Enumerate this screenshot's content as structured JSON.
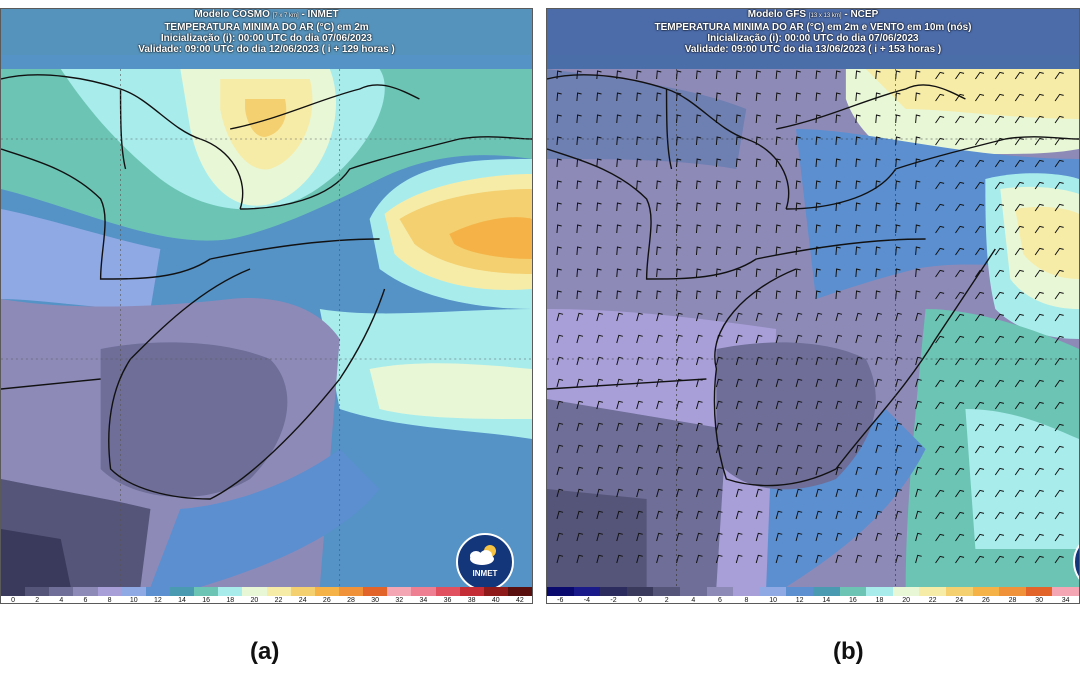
{
  "panels": [
    {
      "id": "a",
      "header": {
        "line1_prefix": "Modelo COSMO",
        "line1_res": "[7 x 7 km]",
        "line1_suffix": "- INMET",
        "line2": "TEMPERATURA MINIMA DO AR (°C) em 2m",
        "line3": "Inicialização (i): 00:00 UTC do dia 07/06/2023",
        "line4": "Validade: 09:00 UTC do dia 12/06/2023 ( i + 129 horas )"
      },
      "colorbar_ticks": [
        "0",
        "2",
        "4",
        "6",
        "8",
        "10",
        "12",
        "14",
        "16",
        "18",
        "20",
        "22",
        "24",
        "26",
        "28",
        "30",
        "32",
        "34",
        "36",
        "38",
        "40",
        "42"
      ],
      "colorbar_colors": [
        "#3a3a5c",
        "#55557a",
        "#6e6e98",
        "#8d8ab8",
        "#a99fd8",
        "#8ea9e4",
        "#5b8fd0",
        "#4a9bb2",
        "#6cc4b4",
        "#a8ecec",
        "#e8f7d6",
        "#f6eca8",
        "#f4d070",
        "#f5b347",
        "#f0923a",
        "#e2642a",
        "#f4a6b4",
        "#ee7f93",
        "#e0505e",
        "#c42d36",
        "#8e1a1a",
        "#5a0f0f"
      ],
      "caption": "(a)",
      "logo_text": "INMET"
    },
    {
      "id": "b",
      "header": {
        "line1_prefix": "Modelo GFS",
        "line1_res": "[13 x 13 km]",
        "line1_suffix": "- NCEP",
        "line2": "TEMPERATURA MINIMA DO AR (°C) em 2m e VENTO em 10m (nós)",
        "line3": "Inicialização (i): 00:00 UTC do dia 07/06/2023",
        "line4": "Validade: 09:00 UTC do dia 13/06/2023 ( i + 153 horas )"
      },
      "colorbar_ticks": [
        "-6",
        "-4",
        "-2",
        "0",
        "2",
        "4",
        "6",
        "8",
        "10",
        "12",
        "14",
        "16",
        "18",
        "20",
        "22",
        "24",
        "26",
        "28",
        "30",
        "34"
      ],
      "colorbar_colors": [
        "#0a0a6e",
        "#1a1a8a",
        "#2c2c5e",
        "#3a3a5c",
        "#55557a",
        "#6e6e98",
        "#8d8ab8",
        "#a99fd8",
        "#8ea9e4",
        "#5b8fd0",
        "#4a9bb2",
        "#6cc4b4",
        "#a8ecec",
        "#e8f7d6",
        "#f6eca8",
        "#f4d070",
        "#f5b347",
        "#f0923a",
        "#e2642a",
        "#f4a6b4"
      ],
      "caption": "(b)"
    }
  ]
}
